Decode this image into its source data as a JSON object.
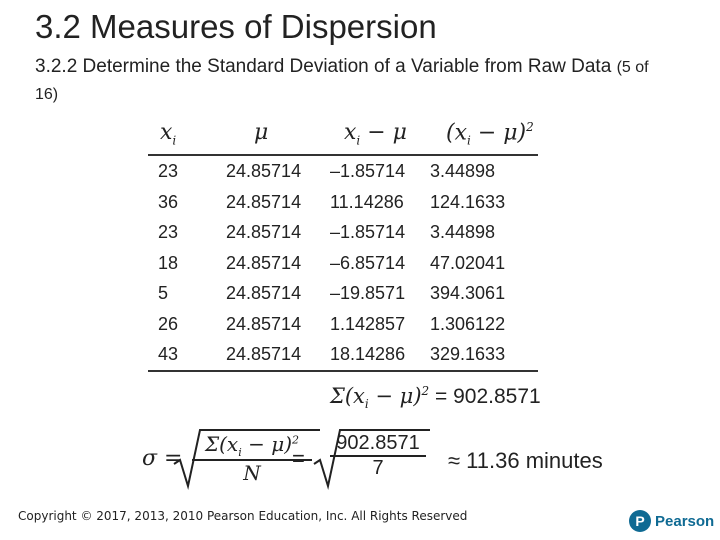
{
  "slide": {
    "title": "3.2 Measures of Dispersion",
    "subtitle": "3.2.2 Determine the Standard Deviation of a Variable from Raw Data",
    "page": "(5 of 16)"
  },
  "table": {
    "headers": [
      "x_i",
      "μ",
      "x_i − μ",
      "(x_i − μ)^2"
    ],
    "rows": [
      [
        "23",
        "24.85714",
        "–1.85714",
        "3.44898"
      ],
      [
        "36",
        "24.85714",
        "11.14286",
        "124.1633"
      ],
      [
        "23",
        "24.85714",
        "–1.85714",
        "3.44898"
      ],
      [
        "18",
        "24.85714",
        "–6.85714",
        "47.02041"
      ],
      [
        "5",
        "24.85714",
        "–19.8571",
        "394.3061"
      ],
      [
        "26",
        "24.85714",
        "1.142857",
        "1.306122"
      ],
      [
        "43",
        "24.85714",
        "18.14286",
        "329.1633"
      ]
    ]
  },
  "sum": {
    "value": "= 902.8571"
  },
  "formula": {
    "n_symbol": "N",
    "numerator_value": "902.8571",
    "denominator_value": "7",
    "result": "≈ 11.36 minutes"
  },
  "footer": {
    "copyright": "Copyright © 2017, 2013, 2010 Pearson Education, Inc. All Rights Reserved",
    "logo_text": "Pearson"
  },
  "colors": {
    "brand": "#0f6a93"
  }
}
